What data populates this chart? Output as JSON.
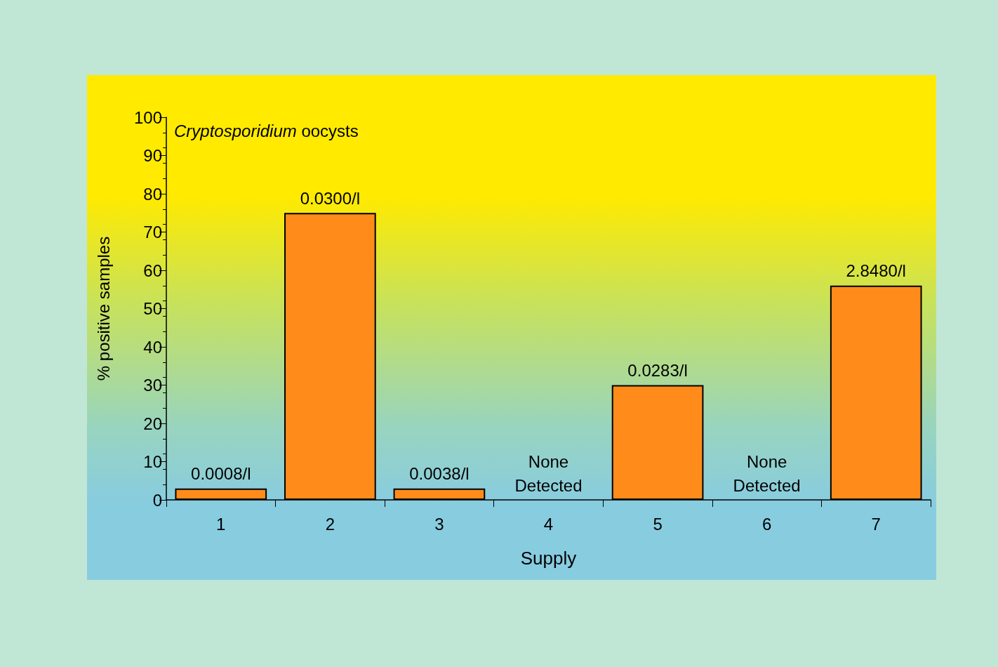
{
  "chart_data": {
    "type": "bar",
    "xlabel": "Supply",
    "ylabel": "% positive samples",
    "annotations": [
      "Cryptosporidium oocysts",
      {
        "text": "0.0008/l",
        "x": "1",
        "y": 3
      },
      {
        "text": "0.0300/l",
        "x": "2",
        "y": 75
      },
      {
        "text": "0.0038/l",
        "x": "3",
        "y": 3
      },
      {
        "text": "None\nDetected",
        "x": "4",
        "y": 0
      },
      {
        "text": "0.0283/l",
        "x": "5",
        "y": 30
      },
      {
        "text": "None\nDetected",
        "x": "6",
        "y": 0
      },
      {
        "text": "2.8480/l",
        "x": "7",
        "y": 56
      }
    ],
    "categories": [
      "1",
      "2",
      "3",
      "4",
      "5",
      "6",
      "7"
    ],
    "values": [
      3,
      75,
      3,
      0,
      30,
      0,
      56
    ],
    "color": "#ff8c1a",
    "ylim": [
      0,
      100
    ],
    "yticks": [
      0,
      10,
      20,
      30,
      40,
      50,
      60,
      70,
      80,
      90,
      100
    ],
    "grid": false
  }
}
